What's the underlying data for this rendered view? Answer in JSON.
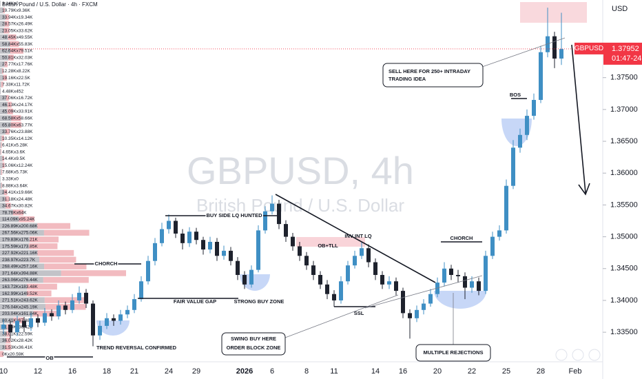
{
  "chart_data": {
    "type": "candlestick",
    "title": "GBPUSD, 4h",
    "subtitle": "British Pound / U.S. Dollar",
    "header": "British Pound / U.S. Dollar · 4h · FXCM",
    "currency": "USD",
    "symbol": "GBPUSD",
    "last_price": 1.37952,
    "countdown": "01:47-24",
    "up_color": "#3f8fc4",
    "down_color": "#1e222d",
    "ylim": [
      1.3309,
      1.3872
    ],
    "yticks": [
      {
        "value": 1.335,
        "label": "1.33500"
      },
      {
        "value": 1.34,
        "label": "1.34000"
      },
      {
        "value": 1.345,
        "label": "1.34500"
      },
      {
        "value": 1.35,
        "label": "1.35000"
      },
      {
        "value": 1.355,
        "label": "1.35500"
      },
      {
        "value": 1.36,
        "label": "1.36000"
      },
      {
        "value": 1.365,
        "label": "1.36500"
      },
      {
        "value": 1.37,
        "label": "1.37000"
      },
      {
        "value": 1.375,
        "label": "1.37500"
      }
    ],
    "categories": [
      "10",
      null,
      null,
      null,
      null,
      "12",
      null,
      null,
      null,
      null,
      "16",
      null,
      null,
      null,
      null,
      "18",
      null,
      null,
      null,
      "21",
      null,
      null,
      null,
      null,
      "24",
      null,
      null,
      null,
      "29",
      null,
      null,
      null,
      null,
      null,
      null,
      "2026",
      null,
      null,
      null,
      "6",
      null,
      null,
      null,
      null,
      "8",
      null,
      null,
      null,
      "11",
      null,
      null,
      null,
      null,
      null,
      "14",
      null,
      null,
      null,
      "16",
      null,
      null,
      null,
      null,
      "20",
      null,
      null,
      null,
      null,
      "22",
      null,
      null,
      null,
      null,
      "25",
      null,
      null,
      null,
      null,
      "28",
      null,
      null,
      null,
      null,
      "Feb"
    ],
    "open": [
      1.3355,
      1.3362,
      1.335,
      1.3368,
      1.3358,
      1.3372,
      1.3365,
      1.338,
      1.3375,
      1.3392,
      1.3385,
      1.34,
      1.3412,
      1.3395,
      1.3345,
      1.336,
      1.3372,
      1.3368,
      1.3378,
      1.3385,
      1.3402,
      1.343,
      1.3462,
      1.349,
      1.3512,
      1.3525,
      1.3505,
      1.349,
      1.3508,
      1.3495,
      1.348,
      1.3492,
      1.347,
      1.3478,
      1.3462,
      1.344,
      1.3425,
      1.3448,
      1.351,
      1.354,
      1.3552,
      1.352,
      1.35,
      1.3485,
      1.347,
      1.3455,
      1.344,
      1.3425,
      1.341,
      1.34,
      1.343,
      1.3455,
      1.347,
      1.3482,
      1.346,
      1.344,
      1.3425,
      1.343,
      1.3415,
      1.338,
      1.3372,
      1.3385,
      1.3395,
      1.341,
      1.3428,
      1.345,
      1.344,
      1.3438,
      1.342,
      1.343,
      1.3415,
      1.347,
      1.35,
      1.351,
      1.358,
      1.364,
      1.366,
      1.369,
      1.3715,
      1.379,
      1.3815,
      1.378,
      null,
      null
    ],
    "high": [
      1.337,
      1.3368,
      1.3376,
      1.3374,
      1.338,
      1.3378,
      1.3388,
      1.3386,
      1.34,
      1.3398,
      1.341,
      1.3422,
      1.3418,
      1.34,
      1.3368,
      1.338,
      1.3378,
      1.3385,
      1.3392,
      1.341,
      1.3438,
      1.347,
      1.3498,
      1.3522,
      1.3535,
      1.353,
      1.3512,
      1.3515,
      1.3514,
      1.35,
      1.35,
      1.3498,
      1.3486,
      1.3484,
      1.3468,
      1.3446,
      1.3455,
      1.3518,
      1.3548,
      1.3565,
      1.3558,
      1.3526,
      1.3506,
      1.3492,
      1.3476,
      1.3462,
      1.3446,
      1.3432,
      1.3416,
      1.3438,
      1.3462,
      1.3478,
      1.3492,
      1.3488,
      1.3466,
      1.3446,
      1.3438,
      1.3436,
      1.342,
      1.3386,
      1.3392,
      1.3402,
      1.3418,
      1.3436,
      1.346,
      1.3456,
      1.3448,
      1.3444,
      1.3438,
      1.3436,
      1.3478,
      1.3508,
      1.3518,
      1.359,
      1.3652,
      1.367,
      1.37,
      1.3725,
      1.38,
      1.386,
      1.3822,
      1.3852,
      null,
      null
    ],
    "low": [
      1.3347,
      1.334,
      1.3344,
      1.335,
      1.3352,
      1.3358,
      1.336,
      1.3368,
      1.337,
      1.3378,
      1.338,
      1.3395,
      1.3388,
      1.3328,
      1.3338,
      1.3355,
      1.336,
      1.3362,
      1.3372,
      1.338,
      1.3398,
      1.3425,
      1.3455,
      1.3485,
      1.3505,
      1.3498,
      1.348,
      1.3484,
      1.3488,
      1.3472,
      1.3474,
      1.3462,
      1.3464,
      1.3455,
      1.3432,
      1.3418,
      1.342,
      1.3444,
      1.3505,
      1.3535,
      1.3512,
      1.3492,
      1.3478,
      1.3462,
      1.3448,
      1.3432,
      1.3418,
      1.3402,
      1.339,
      1.3395,
      1.3425,
      1.345,
      1.3465,
      1.3452,
      1.3432,
      1.3418,
      1.3418,
      1.3408,
      1.3372,
      1.334,
      1.3366,
      1.3378,
      1.339,
      1.3405,
      1.3422,
      1.3432,
      1.3428,
      1.3402,
      1.3412,
      1.3408,
      1.341,
      1.3465,
      1.3494,
      1.3505,
      1.3575,
      1.3632,
      1.3652,
      1.3684,
      1.371,
      1.3782,
      1.3765,
      1.377,
      null,
      null
    ],
    "close": [
      1.3362,
      1.335,
      1.3368,
      1.3358,
      1.3372,
      1.3365,
      1.338,
      1.3375,
      1.3392,
      1.3385,
      1.34,
      1.3412,
      1.3395,
      1.3345,
      1.336,
      1.3372,
      1.3368,
      1.3378,
      1.3385,
      1.3402,
      1.343,
      1.3462,
      1.349,
      1.3512,
      1.3525,
      1.3505,
      1.349,
      1.3508,
      1.3495,
      1.348,
      1.3492,
      1.347,
      1.3478,
      1.3462,
      1.344,
      1.3425,
      1.3448,
      1.351,
      1.354,
      1.3552,
      1.352,
      1.35,
      1.3485,
      1.347,
      1.3455,
      1.344,
      1.3425,
      1.341,
      1.34,
      1.343,
      1.3455,
      1.347,
      1.3482,
      1.346,
      1.344,
      1.3425,
      1.343,
      1.3415,
      1.338,
      1.3372,
      1.3385,
      1.3395,
      1.341,
      1.3428,
      1.345,
      1.344,
      1.3438,
      1.342,
      1.343,
      1.3415,
      1.347,
      1.35,
      1.351,
      1.358,
      1.364,
      1.366,
      1.369,
      1.3715,
      1.379,
      1.3815,
      1.378,
      1.3795,
      null,
      null
    ],
    "annotations": [
      "CHORCH",
      "BUY SIDE LQ HUNTED",
      "FAIR VALUE GAP",
      "STRONG BUY ZONE",
      "TREND REVERSAL CONFIRMED",
      "OB",
      "OB+TLL",
      "INV INT LQ",
      "SSL",
      "SWING BUY HERE",
      "ORDER BLOCK ZONE",
      "MULTIPLE REJECTIONS",
      "CHORCH",
      "BOS",
      "SELL HERE FOR 250+ INTRADAY",
      "TRADING IDEA"
    ],
    "volume_profile": [
      {
        "label": "3.14Kx0",
        "buy": 3140,
        "sell": 0
      },
      {
        "label": "19.79Kx9.36K",
        "buy": 19790,
        "sell": 9360
      },
      {
        "label": "33.94Kx19.34K",
        "buy": 33940,
        "sell": 19340
      },
      {
        "label": "28.57Kx26.49K",
        "buy": 28570,
        "sell": 26490
      },
      {
        "label": "23.05Kx33.62K",
        "buy": 23050,
        "sell": 33620
      },
      {
        "label": "48.45Kx49.55K",
        "buy": 48450,
        "sell": 49550
      },
      {
        "label": "58.84Kx55.83K",
        "buy": 58840,
        "sell": 55830
      },
      {
        "label": "62.64Kx79.51K",
        "buy": 62640,
        "sell": 79510
      },
      {
        "label": "50.81Kx32.03K",
        "buy": 50810,
        "sell": 32030
      },
      {
        "label": "27.77Kx17.76K",
        "buy": 27770,
        "sell": 17760
      },
      {
        "label": "12.28Kx8.22K",
        "buy": 12280,
        "sell": 8220
      },
      {
        "label": "19.16Kx22.5K",
        "buy": 19160,
        "sell": 22500
      },
      {
        "label": "7.33Kx11.72K",
        "buy": 7330,
        "sell": 11720
      },
      {
        "label": "4.48Kx452",
        "buy": 4480,
        "sell": 452
      },
      {
        "label": "37.06Kx16.72K",
        "buy": 37060,
        "sell": 16720
      },
      {
        "label": "46.13Kx24.17K",
        "buy": 46130,
        "sell": 24170
      },
      {
        "label": "45.09Kx33.91K",
        "buy": 45090,
        "sell": 33910
      },
      {
        "label": "68.58Kx58.66K",
        "buy": 68580,
        "sell": 58660
      },
      {
        "label": "65.80Kx63.77K",
        "buy": 65800,
        "sell": 63770
      },
      {
        "label": "33.76Kx23.88K",
        "buy": 33760,
        "sell": 23880
      },
      {
        "label": "10.35Kx14.12K",
        "buy": 10350,
        "sell": 14120
      },
      {
        "label": "6.41Kx5.28K",
        "buy": 6410,
        "sell": 5280
      },
      {
        "label": "4.65Kx3.6K",
        "buy": 4650,
        "sell": 3600
      },
      {
        "label": "14.4Kx9.5K",
        "buy": 14400,
        "sell": 9500
      },
      {
        "label": "15.06Kx12.24K",
        "buy": 15060,
        "sell": 12240
      },
      {
        "label": "7.68Kx5.73K",
        "buy": 7680,
        "sell": 5730
      },
      {
        "label": "3.33Kx0",
        "buy": 3330,
        "sell": 0
      },
      {
        "label": "8.88Kx3.64K",
        "buy": 8880,
        "sell": 3640
      },
      {
        "label": "24.41Kx19.66K",
        "buy": 24410,
        "sell": 19660
      },
      {
        "label": "31.18Kx24.48K",
        "buy": 31180,
        "sell": 24480
      },
      {
        "label": "34.67Kx30.82K",
        "buy": 34670,
        "sell": 30820
      },
      {
        "label": "78.76Kx64K",
        "buy": 78760,
        "sell": 64000
      },
      {
        "label": "114.09Kx95.24K",
        "buy": 114090,
        "sell": 95240
      },
      {
        "label": "226.89Kx200.68K",
        "buy": 226890,
        "sell": 200680
      },
      {
        "label": "267.56Kx275.06K",
        "buy": 267560,
        "sell": 275060
      },
      {
        "label": "179.83Kx176.21K",
        "buy": 179830,
        "sell": 176210
      },
      {
        "label": "175.59Kx173.85K",
        "buy": 175590,
        "sell": 173850
      },
      {
        "label": "227.92Kx221.16K",
        "buy": 227920,
        "sell": 221160
      },
      {
        "label": "238.97Kx223.7K",
        "buy": 238970,
        "sell": 223700
      },
      {
        "label": "268.49Kx257.16K",
        "buy": 268490,
        "sell": 257160
      },
      {
        "label": "371.64Kx394.88K",
        "buy": 371640,
        "sell": 394880
      },
      {
        "label": "263.06Kx276.44K",
        "buy": 263060,
        "sell": 276440
      },
      {
        "label": "163.72Kx183.48K",
        "buy": 163720,
        "sell": 183480
      },
      {
        "label": "162.99Kx149.52K",
        "buy": 162990,
        "sell": 149520
      },
      {
        "label": "271.51Kx243.62K",
        "buy": 271510,
        "sell": 243620
      },
      {
        "label": "276.04Kx245.19K",
        "buy": 276040,
        "sell": 245190
      },
      {
        "label": "203.04Kx161.84K",
        "buy": 203040,
        "sell": 161840
      },
      {
        "label": "80.41Kx67.88K",
        "buy": 80410,
        "sell": 67880
      },
      {
        "label": "41.13Kx36.42K",
        "buy": 41130,
        "sell": 36420
      },
      {
        "label": "38.01Kx22.59K",
        "buy": 38010,
        "sell": 22590
      },
      {
        "label": "36.02Kx28.42K",
        "buy": 36020,
        "sell": 28420
      },
      {
        "label": "31.53Kx36.41K",
        "buy": 31530,
        "sell": 36410
      },
      {
        "label": "0Kx20.59K",
        "buy": 0,
        "sell": 20590
      }
    ]
  }
}
